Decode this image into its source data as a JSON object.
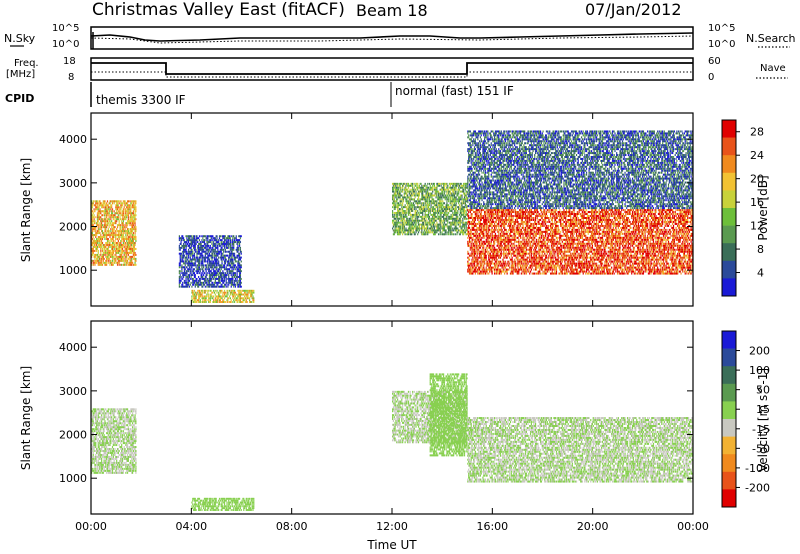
{
  "header": {
    "station": "Christmas Valley East (fitACF)",
    "beam": "Beam 18",
    "date": "07/Jan/2012"
  },
  "strip_labels": {
    "nsky": "N.Sky",
    "nsky_ticks": [
      "10^5",
      "10^0"
    ],
    "nsearch": "N.Search",
    "nsearch_ticks": [
      "10^5",
      "10^0"
    ],
    "freq": "Freq.",
    "freq_unit": "[MHz]",
    "freq_ticks": [
      "18",
      "8"
    ],
    "nave": "Nave",
    "nave_ticks": [
      "60",
      "0"
    ],
    "cpid": "CPID",
    "cpid_modes": [
      "themis 3300 IF",
      "normal (fast) 151 IF"
    ]
  },
  "colors": {
    "power_scale": [
      "#1a1ad6",
      "#2b4a9a",
      "#3a6e58",
      "#5a9a50",
      "#6dbf3a",
      "#c8d23a",
      "#f2c233",
      "#f08a1e",
      "#e8531a",
      "#e00000"
    ],
    "velocity_scale": [
      "#1a1ad6",
      "#2b4a9a",
      "#3a6e58",
      "#5a9a50",
      "#88d050",
      "#c8c8c0",
      "#f2b233",
      "#f08a1e",
      "#e8531a",
      "#e00000"
    ]
  },
  "chart_data": [
    {
      "type": "heatmap",
      "name": "power",
      "ylabel": "Slant Range [km]",
      "xlabel": "Time UT",
      "xlim": [
        "00:00",
        "24:00"
      ],
      "ylim": [
        180,
        4600
      ],
      "x_ticks": [
        "00:00",
        "04:00",
        "08:00",
        "12:00",
        "16:00",
        "20:00",
        "00:00"
      ],
      "y_ticks": [
        1000,
        2000,
        3000,
        4000
      ],
      "colorbar": {
        "label": "Power [dB]",
        "ticks": [
          4,
          8,
          12,
          16,
          20,
          24,
          28
        ],
        "range": [
          0,
          30
        ]
      },
      "echo_regions": [
        {
          "t0": 0.0,
          "t1": 1.8,
          "r0": 1100,
          "r1": 2600,
          "value": 20
        },
        {
          "t0": 3.5,
          "t1": 6.0,
          "r0": 600,
          "r1": 1800,
          "value": 4
        },
        {
          "t0": 4.0,
          "t1": 6.5,
          "r0": 250,
          "r1": 550,
          "value": 18
        },
        {
          "t0": 12.0,
          "t1": 15.0,
          "r0": 1800,
          "r1": 3000,
          "value": 12
        },
        {
          "t0": 15.0,
          "t1": 24.0,
          "r0": 900,
          "r1": 2400,
          "value": 26
        },
        {
          "t0": 15.0,
          "t1": 24.0,
          "r0": 2400,
          "r1": 4200,
          "value": 6
        }
      ]
    },
    {
      "type": "heatmap",
      "name": "velocity",
      "ylabel": "Slant Range [km]",
      "xlabel": "Time UT",
      "xlim": [
        "00:00",
        "24:00"
      ],
      "ylim": [
        180,
        4600
      ],
      "x_ticks": [
        "00:00",
        "04:00",
        "08:00",
        "12:00",
        "16:00",
        "20:00",
        "00:00"
      ],
      "y_ticks": [
        1000,
        2000,
        3000,
        4000
      ],
      "colorbar": {
        "label": "Velocity [m s^-1]",
        "ticks": [
          200,
          100,
          50,
          15,
          -15,
          -50,
          -100,
          -200
        ],
        "range": [
          -250,
          250
        ]
      },
      "echo_regions": [
        {
          "t0": 0.0,
          "t1": 1.8,
          "r0": 1100,
          "r1": 2600,
          "value": 0
        },
        {
          "t0": 4.0,
          "t1": 6.5,
          "r0": 250,
          "r1": 550,
          "value": 30
        },
        {
          "t0": 12.0,
          "t1": 15.0,
          "r0": 1800,
          "r1": 3000,
          "value": 0
        },
        {
          "t0": 13.5,
          "t1": 15.0,
          "r0": 1500,
          "r1": 3400,
          "value": 30
        },
        {
          "t0": 15.0,
          "t1": 24.0,
          "r0": 900,
          "r1": 2400,
          "value": 0
        }
      ]
    }
  ]
}
